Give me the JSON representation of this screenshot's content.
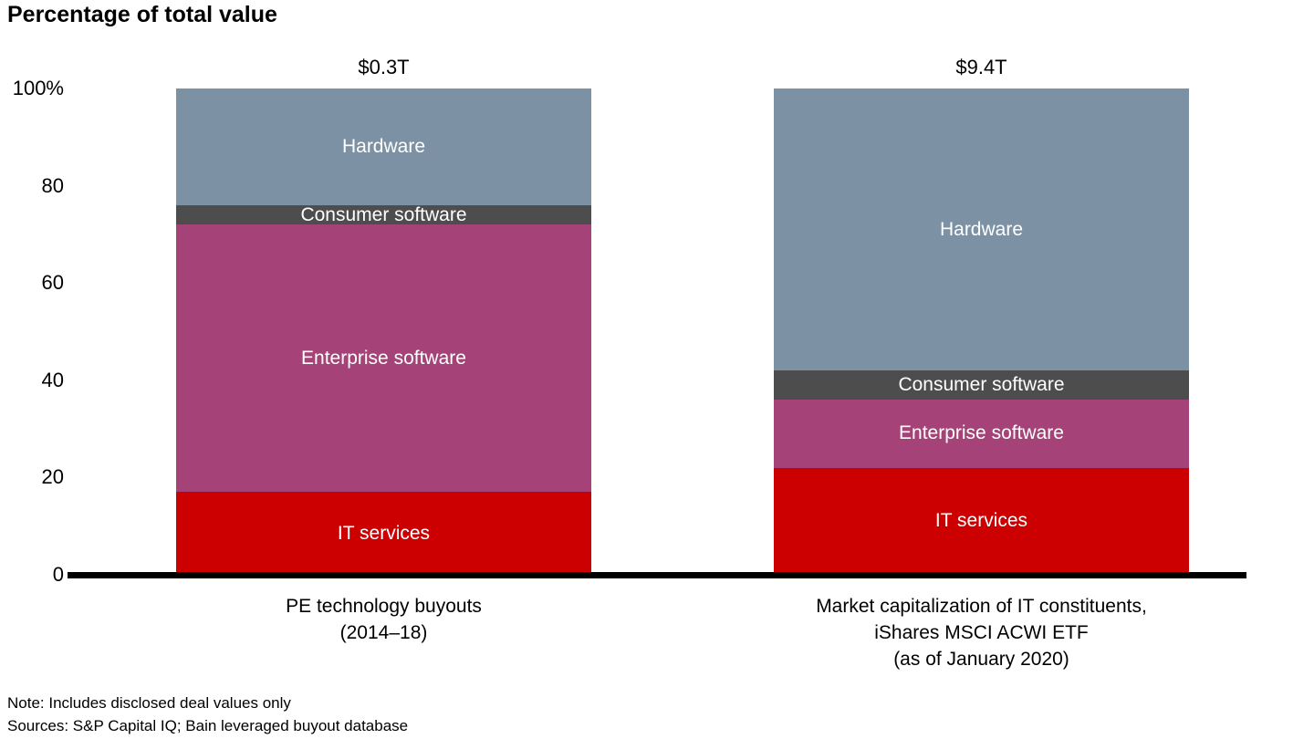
{
  "title": "Percentage of total value",
  "notes": [
    "Note: Includes disclosed deal values only",
    "Sources: S&P Capital IQ; Bain leveraged buyout database"
  ],
  "chart_data": {
    "type": "bar",
    "stacked": true,
    "title": "Percentage of total value",
    "xlabel": "",
    "ylabel": "Percentage of total value",
    "ylim": [
      0,
      100
    ],
    "grid": false,
    "legend_position": "labels-inside-segments",
    "y_ticks": [
      {
        "value": 0,
        "label": "0"
      },
      {
        "value": 20,
        "label": "20"
      },
      {
        "value": 40,
        "label": "40"
      },
      {
        "value": 60,
        "label": "60"
      },
      {
        "value": 80,
        "label": "80"
      },
      {
        "value": 100,
        "label": "100%"
      }
    ],
    "segment_colors": {
      "IT services": "#cc0000",
      "Enterprise software": "#a54378",
      "Consumer software": "#4d4d4d",
      "Hardware": "#7d91a4"
    },
    "bars": [
      {
        "total_label": "$0.3T",
        "category_lines": [
          "PE technology buyouts",
          "(2014–18)"
        ],
        "segments": [
          {
            "name": "IT services",
            "value": 17
          },
          {
            "name": "Enterprise software",
            "value": 55
          },
          {
            "name": "Consumer software",
            "value": 4
          },
          {
            "name": "Hardware",
            "value": 24
          }
        ]
      },
      {
        "total_label": "$9.4T",
        "category_lines": [
          "Market capitalization of IT constituents,",
          "iShares MSCI ACWI ETF",
          "(as of January 2020)"
        ],
        "segments": [
          {
            "name": "IT services",
            "value": 22
          },
          {
            "name": "Enterprise software",
            "value": 14
          },
          {
            "name": "Consumer software",
            "value": 6
          },
          {
            "name": "Hardware",
            "value": 58
          }
        ]
      }
    ]
  }
}
